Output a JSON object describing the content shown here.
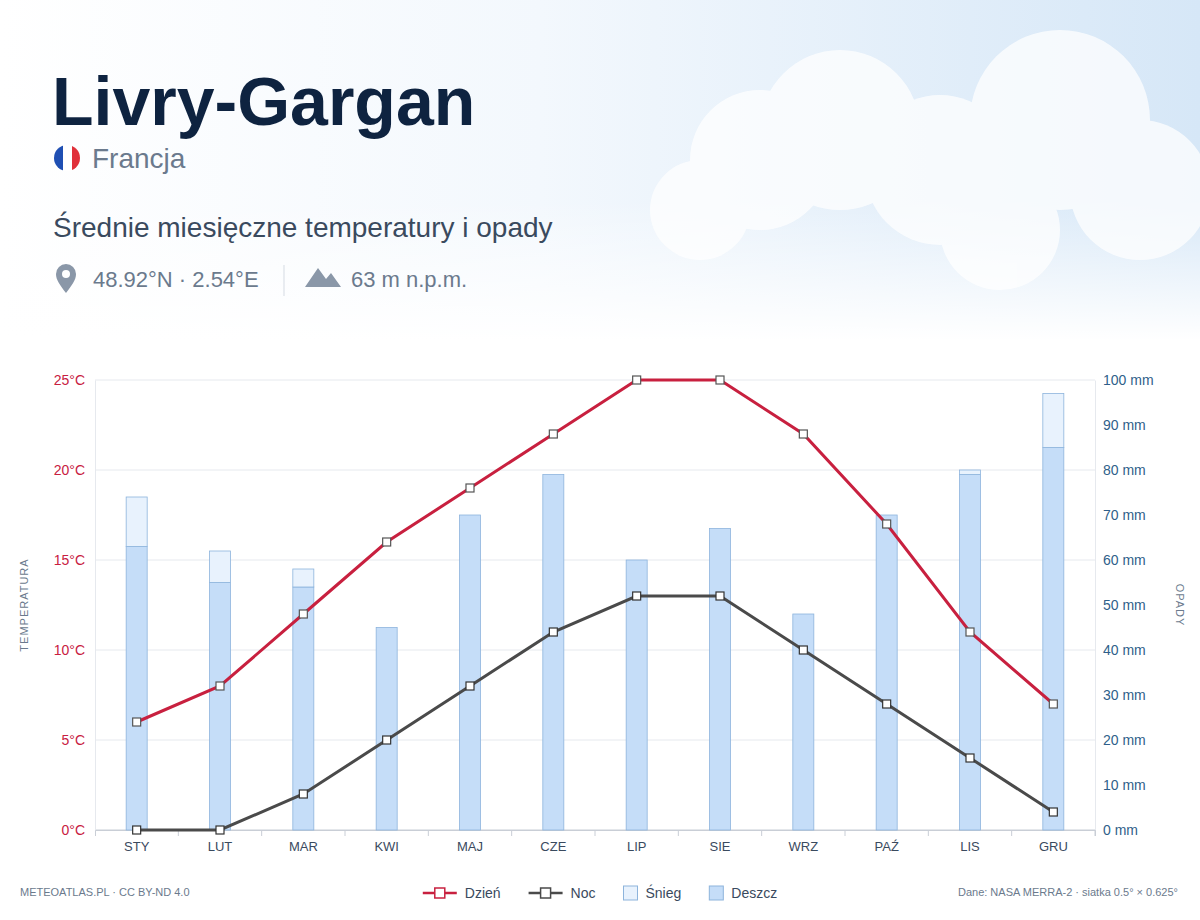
{
  "chart_data": {
    "type": "combo",
    "title": "Livry-Gargan",
    "subtitle": "Francja",
    "annotations": [
      "Średnie miesięczne temperatury i opady",
      "48.92°N · 2.54°E",
      "63 m n.p.m.",
      "METEOATLAS.PL · CC BY-ND 4.0",
      "Dane: NASA MERRA-2 · siatka 0.5° × 0.625°"
    ],
    "categories": [
      "STY",
      "LUT",
      "MAR",
      "KWI",
      "MAJ",
      "CZE",
      "LIP",
      "SIE",
      "WRZ",
      "PAŹ",
      "LIS",
      "GRU"
    ],
    "ylabel": "TEMPERATURA",
    "y2label": "OPADY",
    "ylim": [
      0,
      25
    ],
    "yticks": [
      {
        "value": 0,
        "label": "0°C"
      },
      {
        "value": 5,
        "label": "5°C"
      },
      {
        "value": 10,
        "label": "10°C"
      },
      {
        "value": 15,
        "label": "15°C"
      },
      {
        "value": 20,
        "label": "20°C"
      },
      {
        "value": 25,
        "label": "25°C"
      }
    ],
    "y2lim": [
      0,
      100
    ],
    "y2ticks": [
      {
        "value": 0,
        "label": "0 mm"
      },
      {
        "value": 10,
        "label": "10 mm"
      },
      {
        "value": 20,
        "label": "20 mm"
      },
      {
        "value": 30,
        "label": "30 mm"
      },
      {
        "value": 40,
        "label": "40 mm"
      },
      {
        "value": 50,
        "label": "50 mm"
      },
      {
        "value": 60,
        "label": "60 mm"
      },
      {
        "value": 70,
        "label": "70 mm"
      },
      {
        "value": 80,
        "label": "80 mm"
      },
      {
        "value": 90,
        "label": "90 mm"
      },
      {
        "value": 100,
        "label": "100 mm"
      }
    ],
    "grid": true,
    "stacked": true,
    "legend": "bottom",
    "series": [
      {
        "name": "Dzień",
        "type": "line",
        "color": "#c8203f",
        "marker": "square",
        "values": [
          6,
          8,
          12,
          16,
          19,
          22,
          25,
          25,
          22,
          17,
          11,
          7
        ]
      },
      {
        "name": "Noc",
        "type": "line",
        "color": "#4a4a4a",
        "marker": "square",
        "values": [
          0,
          0,
          2,
          5,
          8,
          11,
          13,
          13,
          10,
          7,
          4,
          1
        ]
      },
      {
        "name": "Śnieg",
        "type": "bar",
        "axis": "y2",
        "color": "#e8f2fd",
        "values": [
          11,
          7,
          4,
          0,
          0,
          0,
          0,
          0,
          0,
          0,
          1,
          12
        ]
      },
      {
        "name": "Deszcz",
        "type": "bar",
        "axis": "y2",
        "color": "#c5ddf8",
        "values": [
          63,
          55,
          54,
          45,
          70,
          79,
          60,
          67,
          48,
          70,
          79,
          85
        ]
      }
    ]
  }
}
